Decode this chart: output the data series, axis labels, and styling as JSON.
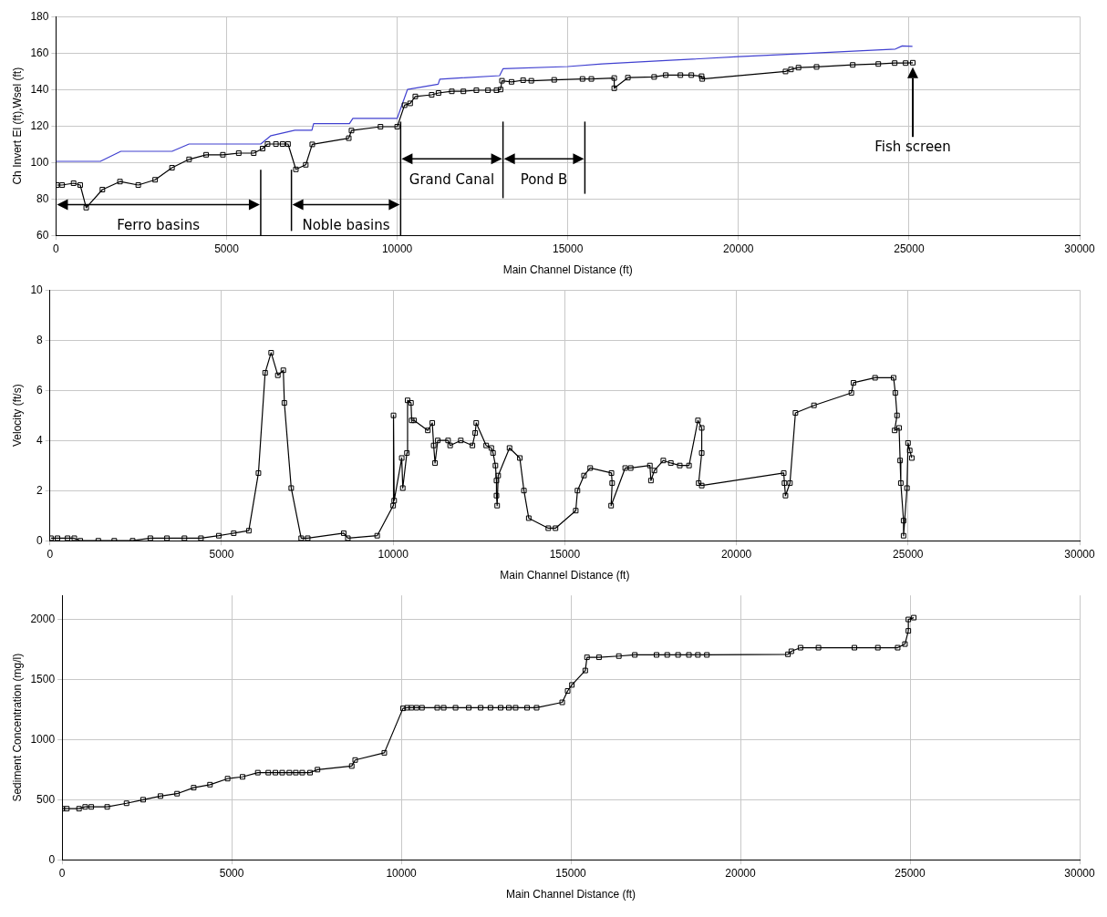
{
  "chart_data": [
    {
      "type": "line",
      "xlabel": "Main Channel Distance (ft)",
      "ylabel": "Ch Invert El (ft),Wsel (ft)",
      "xlim": [
        0,
        30000
      ],
      "xticks": [
        0,
        5000,
        10000,
        15000,
        20000,
        25000,
        30000
      ],
      "ylim": [
        60,
        180
      ],
      "yticks": [
        60,
        80,
        100,
        120,
        140,
        160,
        180
      ],
      "grid": true,
      "marker": "square",
      "series": [
        {
          "color": "#000000",
          "x": [
            30,
            180,
            515,
            710,
            885,
            1360,
            1875,
            2410,
            2905,
            3400,
            3900,
            4400,
            4890,
            5355,
            5795,
            6055,
            6200,
            6445,
            6640,
            6800,
            7030,
            7320,
            7510,
            8580,
            8660,
            9510,
            10000,
            10215,
            10380,
            10530,
            11010,
            11210,
            11600,
            11940,
            12320,
            12660,
            12910,
            13030,
            13070,
            13350,
            13690,
            13930,
            14600,
            15430,
            15690,
            16360,
            16360,
            16760,
            17530,
            17870,
            18300,
            18620,
            18920,
            18940,
            21380,
            21540,
            21760,
            22290,
            23350,
            24100,
            24580,
            24900,
            25110
          ],
          "values": [
            87.6,
            87.6,
            88.6,
            87.6,
            75.2,
            85.1,
            89.5,
            87.6,
            90.5,
            97.1,
            101.7,
            104.2,
            104.2,
            105.1,
            105.1,
            107.6,
            110.1,
            110.1,
            110.1,
            110.1,
            96.2,
            98.7,
            109.9,
            113.3,
            117.5,
            119.6,
            119.6,
            131.4,
            132.4,
            136.2,
            137.1,
            138.1,
            139,
            139,
            139.6,
            139.6,
            139.6,
            140,
            144.8,
            144.2,
            145.1,
            144.8,
            145.3,
            145.8,
            145.8,
            146.3,
            140.7,
            146.5,
            146.9,
            147.9,
            147.9,
            147.9,
            147.3,
            145.8,
            149.9,
            151,
            152,
            152.4,
            153.5,
            154,
            154.5,
            154.5,
            154.7
          ]
        },
        {
          "color": "#4040d0",
          "marker": "none",
          "x": [
            0,
            1300,
            1900,
            3400,
            3900,
            6000,
            6300,
            7000,
            7500,
            7550,
            8600,
            8700,
            10000,
            10300,
            11200,
            11250,
            13000,
            13100,
            15000,
            16000,
            18000,
            20000,
            22000,
            24600,
            24800,
            25100
          ],
          "values": [
            100.6,
            100.6,
            106.1,
            106.1,
            110.1,
            110.1,
            114.7,
            117.7,
            117.7,
            121.3,
            121.3,
            124.2,
            124.2,
            140,
            142.9,
            145.7,
            147.6,
            151.4,
            152.6,
            154,
            156,
            158,
            159.8,
            162.2,
            163.9,
            163.7
          ]
        }
      ],
      "ref_lines": [
        {
          "axis": "x",
          "value": 6000,
          "color": "#000000"
        },
        {
          "axis": "x",
          "value": 6900,
          "color": "#000000"
        },
        {
          "axis": "x",
          "value": 10100,
          "color": "#000000"
        },
        {
          "axis": "x",
          "value": 13100,
          "color": "#000000"
        },
        {
          "axis": "x",
          "value": 15500,
          "color": "#000000"
        }
      ],
      "annotations": [
        "Ferro basins",
        "Noble basins",
        "Grand Canal",
        "Pond B",
        "Fish screen"
      ]
    },
    {
      "type": "line",
      "xlabel": "Main Channel Distance (ft)",
      "ylabel": "Velocity (ft/s)",
      "xlim": [
        0,
        30000
      ],
      "xticks": [
        0,
        5000,
        10000,
        15000,
        20000,
        25000,
        30000
      ],
      "ylim": [
        0,
        10
      ],
      "yticks": [
        0,
        2,
        4,
        6,
        8,
        10
      ],
      "grid": true,
      "marker": "square",
      "series": [
        {
          "color": "#000000",
          "x": [
            30,
            220,
            515,
            710,
            885,
            1410,
            1875,
            2410,
            2925,
            3410,
            3920,
            4400,
            4920,
            5355,
            5795,
            6075,
            6270,
            6445,
            6640,
            6800,
            6830,
            7030,
            7320,
            7510,
            8560,
            8680,
            9535,
            10000,
            10010,
            10030,
            10250,
            10280,
            10400,
            10420,
            10520,
            10540,
            10610,
            11010,
            11140,
            11180,
            11220,
            11300,
            11600,
            11660,
            11970,
            12310,
            12390,
            12420,
            12710,
            12860,
            12910,
            12980,
            13010,
            13010,
            13030,
            13060,
            13390,
            13690,
            13810,
            13950,
            14520,
            14730,
            15320,
            15370,
            15560,
            15740,
            16360,
            16380,
            16350,
            16760,
            16920,
            17480,
            17510,
            17610,
            17870,
            18090,
            18350,
            18620,
            18880,
            18990,
            18990,
            18900,
            18990,
            21380,
            21400,
            21430,
            21560,
            21720,
            22260,
            23350,
            23410,
            24040,
            24580,
            24630,
            24680,
            24610,
            24740,
            24770,
            24790,
            24870,
            24870,
            24970,
            25000,
            25050,
            25110
          ],
          "values": [
            0.1,
            0.1,
            0.1,
            0.1,
            0,
            0,
            0,
            0,
            0.1,
            0.1,
            0.1,
            0.1,
            0.2,
            0.3,
            0.4,
            2.7,
            6.7,
            7.5,
            6.6,
            6.8,
            5.5,
            2.1,
            0.1,
            0.1,
            0.3,
            0.1,
            0.2,
            1.4,
            5,
            1.6,
            3.3,
            2.1,
            3.5,
            5.6,
            5.5,
            4.8,
            4.8,
            4.4,
            4.7,
            3.8,
            3.1,
            4,
            4,
            3.8,
            4,
            3.8,
            4.3,
            4.7,
            3.8,
            3.7,
            3.5,
            3,
            2.4,
            1.8,
            1.4,
            2.6,
            3.7,
            3.3,
            2,
            0.9,
            0.5,
            0.5,
            1.2,
            2,
            2.6,
            2.9,
            2.7,
            2.3,
            1.4,
            2.9,
            2.9,
            3,
            2.4,
            2.8,
            3.2,
            3.1,
            3,
            3,
            4.8,
            4.5,
            3.5,
            2.3,
            2.2,
            2.7,
            2.3,
            1.8,
            2.3,
            5.1,
            5.4,
            5.9,
            6.3,
            6.5,
            6.5,
            5.9,
            5,
            4.4,
            4.5,
            3.2,
            2.3,
            0.8,
            0.2,
            2.1,
            3.9,
            3.6,
            3.3
          ]
        }
      ]
    },
    {
      "type": "line",
      "xlabel": "Main Channel Distance (ft)",
      "ylabel": "Sediment Concentration (mg/l)",
      "xlim": [
        0,
        30000
      ],
      "xticks": [
        0,
        5000,
        10000,
        15000,
        20000,
        25000,
        30000
      ],
      "ylim": [
        0,
        2200
      ],
      "yticks": [
        0,
        500,
        1000,
        1500,
        2000
      ],
      "grid": true,
      "marker": "square",
      "series": [
        {
          "color": "#000000",
          "x": [
            0,
            140,
            500,
            680,
            860,
            1330,
            1900,
            2390,
            2900,
            3390,
            3880,
            4360,
            4880,
            5320,
            5770,
            6080,
            6290,
            6490,
            6700,
            6890,
            7080,
            7310,
            7530,
            8540,
            8640,
            9500,
            10050,
            10170,
            10300,
            10450,
            10610,
            11060,
            11250,
            11600,
            11990,
            12340,
            12630,
            12930,
            13170,
            13370,
            13710,
            13990,
            14745,
            14905,
            15030,
            15425,
            15476,
            15830,
            16415,
            16885,
            17525,
            17840,
            18160,
            18480,
            18745,
            19010,
            21400,
            21500,
            21770,
            22300,
            23360,
            24050,
            24635,
            24850,
            24950,
            24950,
            25110
          ],
          "values": [
            425,
            425,
            425,
            440,
            440,
            440,
            470,
            500,
            530,
            550,
            600,
            625,
            675,
            690,
            725,
            725,
            725,
            725,
            725,
            725,
            725,
            725,
            750,
            780,
            830,
            890,
            1260,
            1265,
            1265,
            1265,
            1265,
            1265,
            1265,
            1265,
            1265,
            1265,
            1265,
            1265,
            1265,
            1265,
            1265,
            1265,
            1310,
            1405,
            1455,
            1575,
            1685,
            1685,
            1695,
            1705,
            1705,
            1705,
            1705,
            1705,
            1705,
            1705,
            1710,
            1735,
            1765,
            1765,
            1765,
            1765,
            1765,
            1795,
            1905,
            2000,
            2015
          ]
        }
      ]
    }
  ]
}
